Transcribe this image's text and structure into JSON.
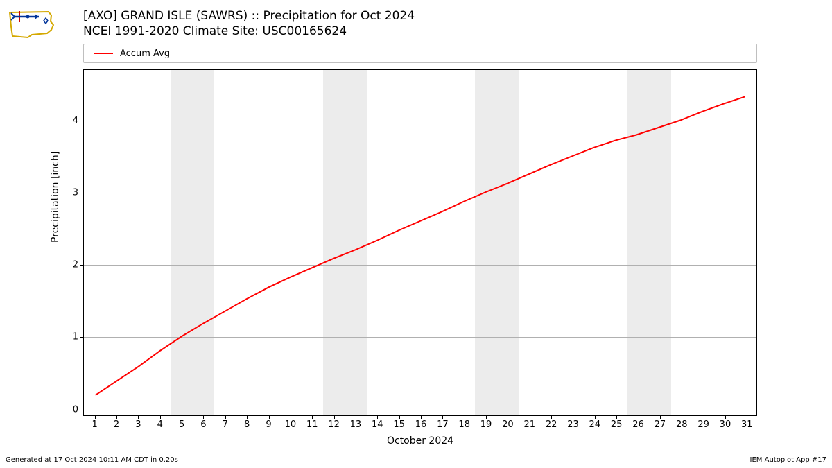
{
  "title_line1": "[AXO] GRAND ISLE (SAWRS) :: Precipitation for Oct 2024",
  "title_line2": "NCEI 1991-2020 Climate Site: USC00165624",
  "legend": {
    "label": "Accum Avg",
    "color": "#ff0000"
  },
  "ylabel": "Precipitation [inch]",
  "xlabel": "October 2024",
  "footer_left": "Generated at 17 Oct 2024 10:11 AM CDT in 0.20s",
  "footer_right": "IEM Autoplot App #17",
  "chart": {
    "type": "line",
    "background_color": "#ffffff",
    "grid_color": "#b0b0b0",
    "weekend_band_color": "#ececec",
    "line_color": "#ff0000",
    "line_width": 2,
    "xlim": [
      0.5,
      31.5
    ],
    "ylim": [
      -0.1,
      4.7
    ],
    "yticks": [
      0,
      1,
      2,
      3,
      4
    ],
    "xticks": [
      1,
      2,
      3,
      4,
      5,
      6,
      7,
      8,
      9,
      10,
      11,
      12,
      13,
      14,
      15,
      16,
      17,
      18,
      19,
      20,
      21,
      22,
      23,
      24,
      25,
      26,
      27,
      28,
      29,
      30,
      31
    ],
    "weekend_bands": [
      [
        4.5,
        6.5
      ],
      [
        11.5,
        13.5
      ],
      [
        18.5,
        20.5
      ],
      [
        25.5,
        27.5
      ]
    ],
    "series": {
      "x": [
        1,
        2,
        3,
        4,
        5,
        6,
        7,
        8,
        9,
        10,
        11,
        12,
        13,
        14,
        15,
        16,
        17,
        18,
        19,
        20,
        21,
        22,
        23,
        24,
        25,
        26,
        27,
        28,
        29,
        30,
        31
      ],
      "y": [
        0.18,
        0.38,
        0.58,
        0.8,
        1.0,
        1.18,
        1.35,
        1.52,
        1.68,
        1.82,
        1.95,
        2.08,
        2.2,
        2.33,
        2.47,
        2.6,
        2.73,
        2.87,
        3.0,
        3.12,
        3.25,
        3.38,
        3.5,
        3.62,
        3.72,
        3.8,
        3.9,
        4.0,
        4.12,
        4.23,
        4.33
      ]
    },
    "title_fontsize": 17,
    "label_fontsize": 14,
    "tick_fontsize": 13
  }
}
